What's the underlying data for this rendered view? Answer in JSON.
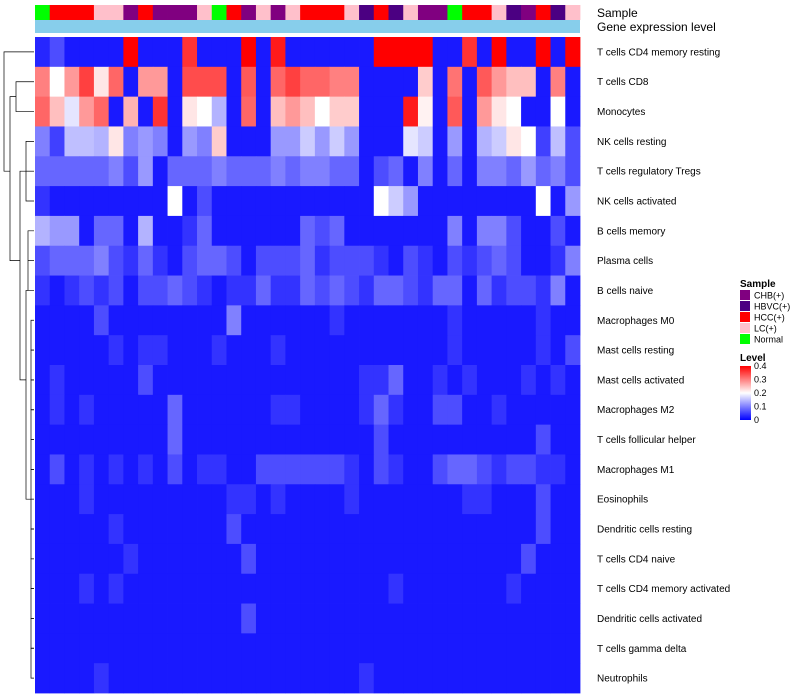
{
  "chart_data": {
    "type": "heatmap",
    "annotations": {
      "sample_label": "Sample",
      "expression_label": "Gene expression level",
      "expression_color": "#87ceeb"
    },
    "samples": [
      "Normal",
      "HCC(+)",
      "HCC(+)",
      "HCC(+)",
      "LC(+)",
      "LC(+)",
      "CHB(+)",
      "HCC(+)",
      "CHB(+)",
      "CHB(+)",
      "CHB(+)",
      "LC(+)",
      "Normal",
      "HCC(+)",
      "CHB(+)",
      "LC(+)",
      "CHB(+)",
      "LC(+)",
      "HCC(+)",
      "HCC(+)",
      "HCC(+)",
      "LC(+)",
      "HBVC(+)",
      "HCC(+)",
      "HBVC(+)",
      "LC(+)",
      "CHB(+)",
      "CHB(+)",
      "Normal",
      "HCC(+)",
      "HCC(+)",
      "LC(+)",
      "HBVC(+)",
      "CHB(+)",
      "HCC(+)",
      "HBVC(+)",
      "LC(+)"
    ],
    "rows": [
      "T cells CD4 memory resting",
      "T cells CD8",
      "Monocytes",
      "NK cells resting",
      "T cells regulatory  Tregs",
      "NK cells activated",
      "B cells memory",
      "Plasma cells",
      "B cells naive",
      "Macrophages M0",
      "Mast cells resting",
      "Mast cells activated",
      "Macrophages M2",
      "T cells follicular helper",
      "Macrophages M1",
      "Eosinophils",
      "Dendritic cells resting",
      "T cells CD4 naive",
      "T cells CD4 memory activated",
      "Dendritic cells activated",
      "T cells gamma delta",
      "Neutrophils"
    ],
    "values": [
      [
        0.03,
        0.06,
        0.02,
        0.02,
        0.02,
        0.02,
        0.4,
        0.02,
        0.02,
        0.02,
        0.36,
        0.02,
        0.02,
        0.02,
        0.4,
        0.02,
        0.38,
        0.02,
        0.02,
        0.02,
        0.02,
        0.02,
        0.02,
        0.4,
        0.4,
        0.4,
        0.4,
        0.02,
        0.02,
        0.36,
        0.02,
        0.4,
        0.02,
        0.02,
        0.4,
        0.02,
        0.4
      ],
      [
        0.3,
        0.2,
        0.28,
        0.35,
        0.22,
        0.32,
        0.02,
        0.28,
        0.28,
        0.02,
        0.34,
        0.34,
        0.34,
        0.02,
        0.33,
        0.02,
        0.32,
        0.35,
        0.32,
        0.32,
        0.3,
        0.3,
        0.02,
        0.02,
        0.02,
        0.02,
        0.24,
        0.02,
        0.31,
        0.02,
        0.33,
        0.28,
        0.25,
        0.25,
        0.02,
        0.3,
        0.02
      ],
      [
        0.32,
        0.25,
        0.18,
        0.28,
        0.32,
        0.02,
        0.26,
        0.02,
        0.36,
        0.02,
        0.22,
        0.2,
        0.14,
        0.02,
        0.32,
        0.02,
        0.25,
        0.28,
        0.25,
        0.2,
        0.24,
        0.24,
        0.02,
        0.02,
        0.02,
        0.38,
        0.21,
        0.02,
        0.33,
        0.02,
        0.28,
        0.22,
        0.2,
        0.02,
        0.02,
        0.2,
        0.02
      ],
      [
        0.1,
        0.05,
        0.15,
        0.15,
        0.14,
        0.22,
        0.1,
        0.12,
        0.1,
        0.02,
        0.12,
        0.1,
        0.24,
        0.02,
        0.02,
        0.02,
        0.12,
        0.12,
        0.16,
        0.12,
        0.16,
        0.12,
        0.02,
        0.02,
        0.02,
        0.18,
        0.16,
        0.02,
        0.12,
        0.02,
        0.14,
        0.16,
        0.22,
        0.2,
        0.05,
        0.15,
        0.06
      ],
      [
        0.08,
        0.08,
        0.08,
        0.08,
        0.08,
        0.1,
        0.06,
        0.12,
        0.02,
        0.08,
        0.08,
        0.08,
        0.1,
        0.08,
        0.08,
        0.08,
        0.1,
        0.08,
        0.1,
        0.1,
        0.08,
        0.08,
        0.02,
        0.06,
        0.08,
        0.02,
        0.1,
        0.02,
        0.08,
        0.02,
        0.1,
        0.1,
        0.08,
        0.12,
        0.08,
        0.1,
        0.06
      ],
      [
        0.04,
        0.02,
        0.02,
        0.02,
        0.02,
        0.02,
        0.02,
        0.02,
        0.02,
        0.2,
        0.02,
        0.06,
        0.02,
        0.02,
        0.02,
        0.02,
        0.02,
        0.02,
        0.02,
        0.02,
        0.02,
        0.02,
        0.02,
        0.2,
        0.16,
        0.12,
        0.02,
        0.02,
        0.02,
        0.02,
        0.02,
        0.02,
        0.02,
        0.02,
        0.2,
        0.02,
        0.12
      ],
      [
        0.14,
        0.12,
        0.12,
        0.02,
        0.08,
        0.08,
        0.02,
        0.14,
        0.02,
        0.02,
        0.04,
        0.08,
        0.02,
        0.02,
        0.02,
        0.02,
        0.02,
        0.02,
        0.08,
        0.06,
        0.08,
        0.02,
        0.02,
        0.02,
        0.02,
        0.02,
        0.02,
        0.02,
        0.1,
        0.02,
        0.1,
        0.1,
        0.06,
        0.02,
        0.02,
        0.06,
        0.02
      ],
      [
        0.06,
        0.08,
        0.08,
        0.08,
        0.1,
        0.06,
        0.04,
        0.08,
        0.04,
        0.02,
        0.06,
        0.08,
        0.08,
        0.06,
        0.02,
        0.06,
        0.06,
        0.06,
        0.08,
        0.04,
        0.06,
        0.06,
        0.06,
        0.04,
        0.02,
        0.06,
        0.04,
        0.02,
        0.06,
        0.04,
        0.06,
        0.08,
        0.06,
        0.02,
        0.02,
        0.04,
        0.1
      ],
      [
        0.04,
        0.02,
        0.04,
        0.06,
        0.04,
        0.06,
        0.02,
        0.06,
        0.06,
        0.08,
        0.06,
        0.04,
        0.02,
        0.04,
        0.04,
        0.08,
        0.04,
        0.04,
        0.08,
        0.06,
        0.08,
        0.06,
        0.04,
        0.08,
        0.08,
        0.06,
        0.04,
        0.08,
        0.08,
        0.02,
        0.08,
        0.04,
        0.06,
        0.06,
        0.04,
        0.1,
        0.02
      ],
      [
        0.02,
        0.02,
        0.02,
        0.02,
        0.06,
        0.02,
        0.02,
        0.02,
        0.02,
        0.02,
        0.02,
        0.02,
        0.02,
        0.1,
        0.02,
        0.02,
        0.02,
        0.02,
        0.02,
        0.02,
        0.04,
        0.02,
        0.02,
        0.02,
        0.02,
        0.02,
        0.02,
        0.02,
        0.04,
        0.02,
        0.02,
        0.02,
        0.02,
        0.02,
        0.04,
        0.02,
        0.02
      ],
      [
        0.02,
        0.02,
        0.02,
        0.02,
        0.02,
        0.04,
        0.02,
        0.04,
        0.04,
        0.02,
        0.02,
        0.02,
        0.04,
        0.02,
        0.02,
        0.02,
        0.04,
        0.02,
        0.02,
        0.02,
        0.02,
        0.02,
        0.02,
        0.02,
        0.02,
        0.02,
        0.02,
        0.02,
        0.04,
        0.02,
        0.02,
        0.02,
        0.02,
        0.02,
        0.04,
        0.02,
        0.06
      ],
      [
        0.02,
        0.04,
        0.02,
        0.02,
        0.02,
        0.02,
        0.02,
        0.06,
        0.02,
        0.02,
        0.02,
        0.02,
        0.02,
        0.02,
        0.02,
        0.02,
        0.02,
        0.02,
        0.02,
        0.02,
        0.02,
        0.02,
        0.04,
        0.04,
        0.08,
        0.02,
        0.02,
        0.04,
        0.02,
        0.04,
        0.02,
        0.02,
        0.02,
        0.04,
        0.02,
        0.04,
        0.02
      ],
      [
        0.02,
        0.04,
        0.02,
        0.04,
        0.02,
        0.02,
        0.02,
        0.02,
        0.02,
        0.08,
        0.02,
        0.02,
        0.02,
        0.02,
        0.02,
        0.02,
        0.04,
        0.04,
        0.02,
        0.02,
        0.02,
        0.02,
        0.04,
        0.08,
        0.04,
        0.02,
        0.02,
        0.06,
        0.06,
        0.02,
        0.02,
        0.04,
        0.02,
        0.02,
        0.02,
        0.02,
        0.02
      ],
      [
        0.02,
        0.02,
        0.02,
        0.02,
        0.02,
        0.02,
        0.02,
        0.02,
        0.02,
        0.08,
        0.02,
        0.02,
        0.02,
        0.02,
        0.02,
        0.02,
        0.02,
        0.02,
        0.02,
        0.02,
        0.02,
        0.02,
        0.02,
        0.06,
        0.02,
        0.02,
        0.02,
        0.02,
        0.02,
        0.02,
        0.02,
        0.02,
        0.02,
        0.02,
        0.06,
        0.02,
        0.02
      ],
      [
        0.02,
        0.06,
        0.02,
        0.04,
        0.02,
        0.04,
        0.02,
        0.04,
        0.02,
        0.06,
        0.02,
        0.04,
        0.04,
        0.02,
        0.02,
        0.06,
        0.06,
        0.06,
        0.06,
        0.06,
        0.06,
        0.04,
        0.02,
        0.06,
        0.04,
        0.02,
        0.02,
        0.06,
        0.08,
        0.08,
        0.06,
        0.04,
        0.06,
        0.06,
        0.04,
        0.04,
        0.02
      ],
      [
        0.02,
        0.02,
        0.02,
        0.04,
        0.02,
        0.02,
        0.02,
        0.02,
        0.02,
        0.02,
        0.02,
        0.02,
        0.02,
        0.04,
        0.04,
        0.02,
        0.04,
        0.02,
        0.02,
        0.02,
        0.02,
        0.04,
        0.02,
        0.02,
        0.02,
        0.02,
        0.02,
        0.02,
        0.02,
        0.04,
        0.04,
        0.02,
        0.02,
        0.02,
        0.06,
        0.02,
        0.02
      ],
      [
        0.02,
        0.02,
        0.02,
        0.02,
        0.02,
        0.04,
        0.02,
        0.02,
        0.02,
        0.02,
        0.02,
        0.02,
        0.02,
        0.06,
        0.02,
        0.02,
        0.02,
        0.02,
        0.02,
        0.02,
        0.02,
        0.02,
        0.02,
        0.02,
        0.02,
        0.02,
        0.02,
        0.02,
        0.02,
        0.02,
        0.02,
        0.02,
        0.02,
        0.02,
        0.06,
        0.02,
        0.02
      ],
      [
        0.02,
        0.02,
        0.02,
        0.02,
        0.02,
        0.02,
        0.04,
        0.02,
        0.02,
        0.02,
        0.02,
        0.02,
        0.02,
        0.02,
        0.06,
        0.02,
        0.02,
        0.02,
        0.02,
        0.02,
        0.02,
        0.02,
        0.02,
        0.02,
        0.02,
        0.02,
        0.02,
        0.02,
        0.02,
        0.02,
        0.02,
        0.02,
        0.02,
        0.06,
        0.02,
        0.02,
        0.02
      ],
      [
        0.02,
        0.02,
        0.02,
        0.04,
        0.02,
        0.04,
        0.02,
        0.02,
        0.02,
        0.02,
        0.02,
        0.02,
        0.02,
        0.02,
        0.02,
        0.02,
        0.02,
        0.02,
        0.02,
        0.02,
        0.02,
        0.02,
        0.02,
        0.02,
        0.04,
        0.02,
        0.02,
        0.02,
        0.02,
        0.02,
        0.02,
        0.02,
        0.04,
        0.02,
        0.02,
        0.02,
        0.02
      ],
      [
        0.02,
        0.02,
        0.02,
        0.02,
        0.02,
        0.02,
        0.02,
        0.02,
        0.02,
        0.02,
        0.02,
        0.02,
        0.02,
        0.02,
        0.06,
        0.02,
        0.02,
        0.02,
        0.02,
        0.02,
        0.02,
        0.02,
        0.02,
        0.02,
        0.02,
        0.02,
        0.02,
        0.02,
        0.02,
        0.02,
        0.02,
        0.02,
        0.02,
        0.02,
        0.02,
        0.02,
        0.02
      ],
      [
        0.02,
        0.02,
        0.02,
        0.02,
        0.02,
        0.02,
        0.02,
        0.02,
        0.02,
        0.02,
        0.02,
        0.02,
        0.02,
        0.02,
        0.02,
        0.02,
        0.02,
        0.02,
        0.02,
        0.02,
        0.02,
        0.02,
        0.02,
        0.02,
        0.02,
        0.02,
        0.02,
        0.02,
        0.02,
        0.02,
        0.02,
        0.02,
        0.02,
        0.02,
        0.02,
        0.02,
        0.02
      ],
      [
        0.02,
        0.02,
        0.02,
        0.02,
        0.04,
        0.02,
        0.02,
        0.02,
        0.02,
        0.02,
        0.02,
        0.02,
        0.02,
        0.02,
        0.02,
        0.02,
        0.02,
        0.02,
        0.02,
        0.02,
        0.02,
        0.02,
        0.04,
        0.02,
        0.02,
        0.02,
        0.02,
        0.02,
        0.02,
        0.02,
        0.02,
        0.02,
        0.02,
        0.02,
        0.02,
        0.02,
        0.02
      ]
    ],
    "color_scale": {
      "min": 0,
      "max": 0.4,
      "low": "#0000ff",
      "mid": "#ffffff",
      "high": "#ff0000",
      "mid_value": 0.2
    },
    "legend_sample": {
      "title": "Sample",
      "items": [
        {
          "label": "CHB(+)",
          "color": "#800080"
        },
        {
          "label": "HBVC(+)",
          "color": "#4b0082"
        },
        {
          "label": "HCC(+)",
          "color": "#ff0000"
        },
        {
          "label": "LC(+)",
          "color": "#ffc0cb"
        },
        {
          "label": "Normal",
          "color": "#00ff00"
        }
      ]
    },
    "legend_level": {
      "title": "Level",
      "ticks": [
        "0.4",
        "0.3",
        "0.2",
        "0.1",
        "0"
      ],
      "tick_values": [
        0.4,
        0.3,
        0.2,
        0.1,
        0
      ]
    }
  }
}
